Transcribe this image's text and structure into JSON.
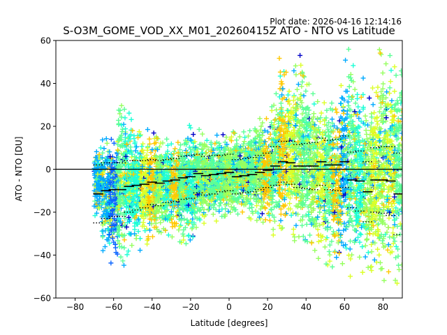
{
  "chart_data": {
    "type": "scatter",
    "plot_date": "Plot date: 2026-04-16 12:14:16",
    "title": "S-O3M_GOME_VOD_XX_M01_20260415Z ATO - NTO vs Latitude",
    "xlabel": "Latitude [degrees]",
    "ylabel": "ATO - NTO [DU]",
    "xlim": [
      -90,
      90
    ],
    "ylim": [
      -60,
      60
    ],
    "x_ticks": [
      -80,
      -60,
      -40,
      -20,
      0,
      20,
      40,
      60,
      80
    ],
    "y_ticks": [
      -60,
      -40,
      -20,
      0,
      20,
      40,
      60
    ],
    "x_tick_labels": [
      "−80",
      "−60",
      "−40",
      "−20",
      "0",
      "20",
      "40",
      "60",
      "80"
    ],
    "y_tick_labels": [
      "−60",
      "−40",
      "−20",
      "0",
      "20",
      "40",
      "60"
    ],
    "zero_line": 0,
    "marker": "+",
    "colors": {
      "navy": "#0000c8",
      "blue": "#0a64ff",
      "sky": "#00aaff",
      "cyan": "#1effd6",
      "mint": "#5cff96",
      "green": "#96ff60",
      "yellow": "#dcff28",
      "orange": "#ffc800"
    },
    "scatter_bands": [
      {
        "lat": -68,
        "lo": -22,
        "hi": 12,
        "color": "sky"
      },
      {
        "lat": -64,
        "lo": -38,
        "hi": 15,
        "color": "sky"
      },
      {
        "lat": -60,
        "lo": -45,
        "hi": 18,
        "color": "blue"
      },
      {
        "lat": -56,
        "lo": -47,
        "hi": 35,
        "color": "mint"
      },
      {
        "lat": -52,
        "lo": -40,
        "hi": 28,
        "color": "cyan"
      },
      {
        "lat": -48,
        "lo": -38,
        "hi": 22,
        "color": "cyan"
      },
      {
        "lat": -44,
        "lo": -36,
        "hi": 20,
        "color": "yellow"
      },
      {
        "lat": -40,
        "lo": -34,
        "hi": 18,
        "color": "orange"
      },
      {
        "lat": -36,
        "lo": -33,
        "hi": 17,
        "color": "green"
      },
      {
        "lat": -32,
        "lo": -32,
        "hi": 17,
        "color": "cyan"
      },
      {
        "lat": -28,
        "lo": -33,
        "hi": 18,
        "color": "orange"
      },
      {
        "lat": -24,
        "lo": -35,
        "hi": 18,
        "color": "mint"
      },
      {
        "lat": -20,
        "lo": -36,
        "hi": 22,
        "color": "cyan"
      },
      {
        "lat": -16,
        "lo": -30,
        "hi": 22,
        "color": "mint"
      },
      {
        "lat": -12,
        "lo": -26,
        "hi": 18,
        "color": "green"
      },
      {
        "lat": -8,
        "lo": -25,
        "hi": 17,
        "color": "mint"
      },
      {
        "lat": -4,
        "lo": -24,
        "hi": 17,
        "color": "mint"
      },
      {
        "lat": 0,
        "lo": -23,
        "hi": 18,
        "color": "green"
      },
      {
        "lat": 4,
        "lo": -22,
        "hi": 19,
        "color": "mint"
      },
      {
        "lat": 8,
        "lo": -23,
        "hi": 20,
        "color": "green"
      },
      {
        "lat": 12,
        "lo": -24,
        "hi": 24,
        "color": "mint"
      },
      {
        "lat": 16,
        "lo": -25,
        "hi": 26,
        "color": "green"
      },
      {
        "lat": 20,
        "lo": -28,
        "hi": 25,
        "color": "orange"
      },
      {
        "lat": 24,
        "lo": -32,
        "hi": 40,
        "color": "mint"
      },
      {
        "lat": 28,
        "lo": -36,
        "hi": 55,
        "color": "orange"
      },
      {
        "lat": 32,
        "lo": -32,
        "hi": 48,
        "color": "yellow"
      },
      {
        "lat": 36,
        "lo": -36,
        "hi": 55,
        "color": "green"
      },
      {
        "lat": 40,
        "lo": -40,
        "hi": 48,
        "color": "mint"
      },
      {
        "lat": 44,
        "lo": -40,
        "hi": 40,
        "color": "green"
      },
      {
        "lat": 48,
        "lo": -44,
        "hi": 40,
        "color": "yellow"
      },
      {
        "lat": 52,
        "lo": -46,
        "hi": 38,
        "color": "mint"
      },
      {
        "lat": 56,
        "lo": -45,
        "hi": 30,
        "color": "orange"
      },
      {
        "lat": 60,
        "lo": -50,
        "hi": 58,
        "color": "sky"
      },
      {
        "lat": 64,
        "lo": -52,
        "hi": 60,
        "color": "mint"
      },
      {
        "lat": 68,
        "lo": -50,
        "hi": 45,
        "color": "cyan"
      },
      {
        "lat": 72,
        "lo": -50,
        "hi": 35,
        "color": "green"
      },
      {
        "lat": 76,
        "lo": -50,
        "hi": 45,
        "color": "yellow"
      },
      {
        "lat": 80,
        "lo": -55,
        "hi": 60,
        "color": "green"
      },
      {
        "lat": 84,
        "lo": -56,
        "hi": 60,
        "color": "yellow"
      },
      {
        "lat": 88,
        "lo": -55,
        "hi": 58,
        "color": "mint"
      }
    ],
    "bin_stats": [
      {
        "lat": -68,
        "mean": -11.5,
        "std": 13.5
      },
      {
        "lat": -64,
        "mean": -10,
        "std": 13
      },
      {
        "lat": -60,
        "mean": -9.5,
        "std": 12.5
      },
      {
        "lat": -56,
        "mean": -9.5,
        "std": 12.5
      },
      {
        "lat": -52,
        "mean": -8,
        "std": 12
      },
      {
        "lat": -48,
        "mean": -7.5,
        "std": 11.5
      },
      {
        "lat": -44,
        "mean": -7,
        "std": 11
      },
      {
        "lat": -40,
        "mean": -6,
        "std": 10.5
      },
      {
        "lat": -36,
        "mean": -6.5,
        "std": 10.5
      },
      {
        "lat": -32,
        "mean": -5.5,
        "std": 10
      },
      {
        "lat": -28,
        "mean": -5,
        "std": 10
      },
      {
        "lat": -24,
        "mean": -4,
        "std": 10
      },
      {
        "lat": -20,
        "mean": -3.5,
        "std": 10
      },
      {
        "lat": -16,
        "mean": -2,
        "std": 9
      },
      {
        "lat": -12,
        "mean": -3,
        "std": 9
      },
      {
        "lat": -8,
        "mean": -2.5,
        "std": 9
      },
      {
        "lat": -4,
        "mean": -2,
        "std": 8.5
      },
      {
        "lat": 0,
        "mean": -1.5,
        "std": 8.5
      },
      {
        "lat": 4,
        "mean": -3.5,
        "std": 8
      },
      {
        "lat": 8,
        "mean": -3,
        "std": 8
      },
      {
        "lat": 12,
        "mean": -2.5,
        "std": 8
      },
      {
        "lat": 16,
        "mean": -1.5,
        "std": 8
      },
      {
        "lat": 20,
        "mean": -0.5,
        "std": 8
      },
      {
        "lat": 24,
        "mean": 1.5,
        "std": 9
      },
      {
        "lat": 28,
        "mean": 3.5,
        "std": 9.5
      },
      {
        "lat": 32,
        "mean": 3,
        "std": 10
      },
      {
        "lat": 36,
        "mean": 1.5,
        "std": 10
      },
      {
        "lat": 40,
        "mean": 1.5,
        "std": 10.5
      },
      {
        "lat": 44,
        "mean": 1.5,
        "std": 11
      },
      {
        "lat": 48,
        "mean": 3.5,
        "std": 11
      },
      {
        "lat": 52,
        "mean": 2,
        "std": 11.5
      },
      {
        "lat": 56,
        "mean": 2,
        "std": 12
      },
      {
        "lat": 60,
        "mean": 3.5,
        "std": 12
      },
      {
        "lat": 64,
        "mean": -5,
        "std": 13
      },
      {
        "lat": 68,
        "mean": -5.5,
        "std": 14
      },
      {
        "lat": 72,
        "mean": -10.5,
        "std": 14
      },
      {
        "lat": 76,
        "mean": -5,
        "std": 15
      },
      {
        "lat": 80,
        "mean": -5,
        "std": 15.5
      },
      {
        "lat": 84,
        "mean": -5.5,
        "std": 16
      },
      {
        "lat": 88,
        "mean": -11.5,
        "std": 19
      }
    ]
  }
}
